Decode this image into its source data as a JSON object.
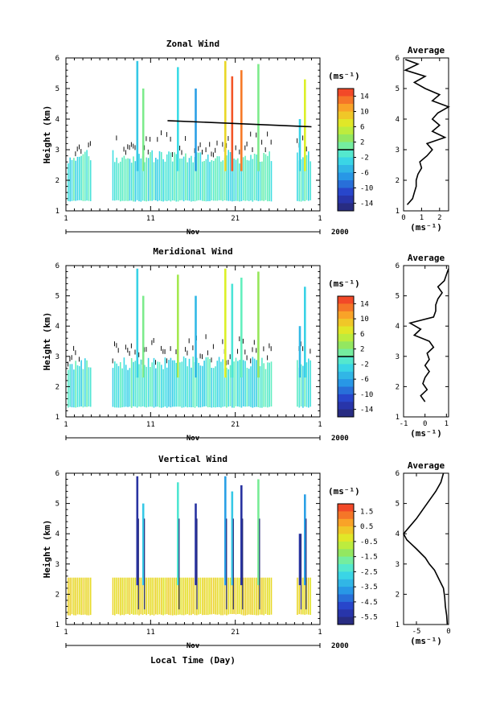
{
  "chart_data": [
    {
      "type": "heatmap",
      "title": "Zonal Wind",
      "xlabel": "",
      "ylabel": "Height (km)",
      "x_ticks": [
        "1",
        "11",
        "21",
        "1"
      ],
      "x_month": "Nov",
      "x_year": "2000",
      "ylim": [
        1,
        6
      ],
      "y_ticks": [
        "1",
        "2",
        "3",
        "4",
        "5",
        "6"
      ],
      "colorbar": {
        "unit": "(ms⁻¹)",
        "tick_labels": [
          "14",
          "10",
          "6",
          "2",
          "-2",
          "-6",
          "-10",
          "-14"
        ],
        "range": [
          -16,
          16
        ],
        "zero_line": true
      },
      "trend_line": {
        "x": [
          13,
          30
        ],
        "y": [
          3.95,
          3.75
        ]
      },
      "profile": {
        "title": "Average",
        "xlabel": "(ms⁻¹)",
        "x_ticks": [
          "0",
          "1",
          "2"
        ],
        "xlim": [
          0,
          2.5
        ],
        "heights": [
          1.2,
          1.4,
          1.6,
          1.8,
          2.0,
          2.2,
          2.4,
          2.6,
          2.8,
          3.0,
          3.2,
          3.4,
          3.6,
          3.8,
          4.0,
          4.2,
          4.4,
          4.6,
          4.8,
          5.0,
          5.2,
          5.4,
          5.6,
          5.8,
          5.95
        ],
        "values": [
          0.2,
          0.5,
          0.6,
          0.7,
          0.7,
          0.8,
          1.0,
          0.9,
          1.3,
          1.6,
          1.3,
          2.3,
          1.6,
          2.0,
          1.6,
          1.9,
          2.5,
          1.6,
          2.0,
          1.2,
          0.6,
          1.2,
          0.1,
          0.8,
          0.1
        ]
      }
    },
    {
      "type": "heatmap",
      "title": "Meridional Wind",
      "xlabel": "",
      "ylabel": "Height (km)",
      "x_ticks": [
        "1",
        "11",
        "21",
        "1"
      ],
      "x_month": "Nov",
      "x_year": "2000",
      "ylim": [
        1,
        6
      ],
      "y_ticks": [
        "1",
        "2",
        "3",
        "4",
        "5",
        "6"
      ],
      "colorbar": {
        "unit": "(ms⁻¹)",
        "tick_labels": [
          "14",
          "10",
          "6",
          "2",
          "-2",
          "-6",
          "-10",
          "-14"
        ],
        "range": [
          -16,
          16
        ],
        "zero_line": true
      },
      "profile": {
        "title": "Average",
        "xlabel": "(ms⁻¹)",
        "x_ticks": [
          "-1",
          "0",
          "1"
        ],
        "xlim": [
          -1,
          1.1
        ],
        "heights": [
          1.5,
          1.7,
          1.9,
          2.1,
          2.3,
          2.5,
          2.7,
          2.9,
          3.1,
          3.3,
          3.5,
          3.7,
          3.9,
          4.1,
          4.3,
          4.5,
          4.7,
          4.9,
          5.1,
          5.3,
          5.5,
          5.7,
          5.9
        ],
        "values": [
          0.0,
          -0.2,
          0.1,
          -0.1,
          0.0,
          0.2,
          0.0,
          0.2,
          0.1,
          0.4,
          0.2,
          -0.5,
          -0.2,
          -0.7,
          0.4,
          0.5,
          0.5,
          0.6,
          0.8,
          0.6,
          0.9,
          1.0,
          1.1
        ]
      }
    },
    {
      "type": "heatmap",
      "title": "Vertical Wind",
      "xlabel": "Local Time (Day)",
      "ylabel": "Height (km)",
      "x_ticks": [
        "1",
        "11",
        "21",
        "1"
      ],
      "x_month": "Nov",
      "x_year": "2000",
      "ylim": [
        1,
        6
      ],
      "y_ticks": [
        "1",
        "2",
        "3",
        "4",
        "5",
        "6"
      ],
      "colorbar": {
        "unit": "(ms⁻¹)",
        "tick_labels": [
          "1.5",
          "0.5",
          "-0.5",
          "-1.5",
          "-2.5",
          "-3.5",
          "-4.5",
          "-5.5"
        ],
        "range": [
          -6,
          2
        ]
      },
      "profile": {
        "title": "Average",
        "xlabel": "(ms⁻¹)",
        "x_ticks": [
          "-5",
          "0"
        ],
        "xlim": [
          -7,
          0
        ],
        "heights": [
          1.0,
          1.3,
          1.6,
          1.9,
          2.2,
          2.5,
          2.8,
          3.0,
          3.2,
          3.5,
          3.8,
          4.0,
          4.2,
          4.5,
          4.8,
          5.1,
          5.4,
          5.7,
          6.0
        ],
        "values": [
          -0.2,
          -0.3,
          -0.5,
          -0.6,
          -0.8,
          -1.5,
          -2.2,
          -3.0,
          -3.6,
          -5.0,
          -6.5,
          -7.0,
          -6.2,
          -5.0,
          -4.0,
          -3.0,
          -2.0,
          -1.2,
          -0.8
        ]
      }
    }
  ]
}
